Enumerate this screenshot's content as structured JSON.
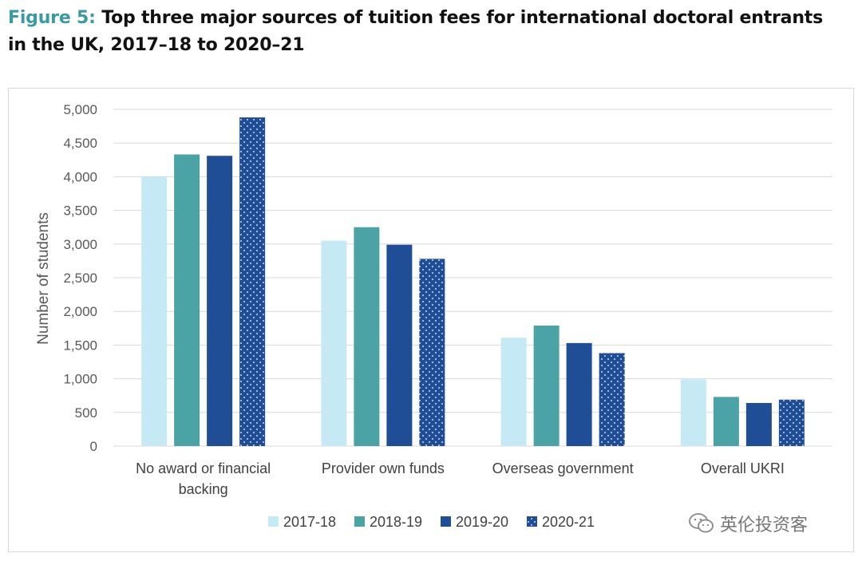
{
  "header": {
    "figure_label": "Figure 5:",
    "title_line1": "Top three major sources of tuition fees for international doctoral entrants",
    "title_line2": "in the UK, 2017–18 to 2020–21"
  },
  "watermark": {
    "text": "英伦投资客"
  },
  "colors": {
    "s2017": "#c5eaf5",
    "s2018": "#4ca3a5",
    "s2019": "#1f4e96",
    "s2020": "#1f4e96",
    "grid": "#d9d9d9",
    "title_accent": "#3a9aa4"
  },
  "chart_data": {
    "type": "bar",
    "title": "",
    "ylabel": "Number of students",
    "xlabel": "",
    "ylim": [
      0,
      5000
    ],
    "yticks": [
      0,
      500,
      1000,
      1500,
      2000,
      2500,
      3000,
      3500,
      4000,
      4500,
      5000
    ],
    "ytick_labels": [
      "0",
      "500",
      "1,000",
      "1,500",
      "2,000",
      "2,500",
      "3,000",
      "3,500",
      "4,000",
      "4,500",
      "5,000"
    ],
    "categories": [
      [
        "No award or financial",
        "backing"
      ],
      [
        "Provider own funds"
      ],
      [
        "Overseas government"
      ],
      [
        "Overall UKRI"
      ]
    ],
    "series": [
      {
        "name": "2017-18",
        "values": [
          4000,
          3050,
          1610,
          990
        ],
        "pattern": "solid"
      },
      {
        "name": "2018-19",
        "values": [
          4330,
          3250,
          1790,
          730
        ],
        "pattern": "solid"
      },
      {
        "name": "2019-20",
        "values": [
          4310,
          2990,
          1530,
          640
        ],
        "pattern": "solid"
      },
      {
        "name": "2020-21",
        "values": [
          4880,
          2780,
          1380,
          690
        ],
        "pattern": "dotted"
      }
    ],
    "grid": true,
    "legend_position": "bottom"
  }
}
